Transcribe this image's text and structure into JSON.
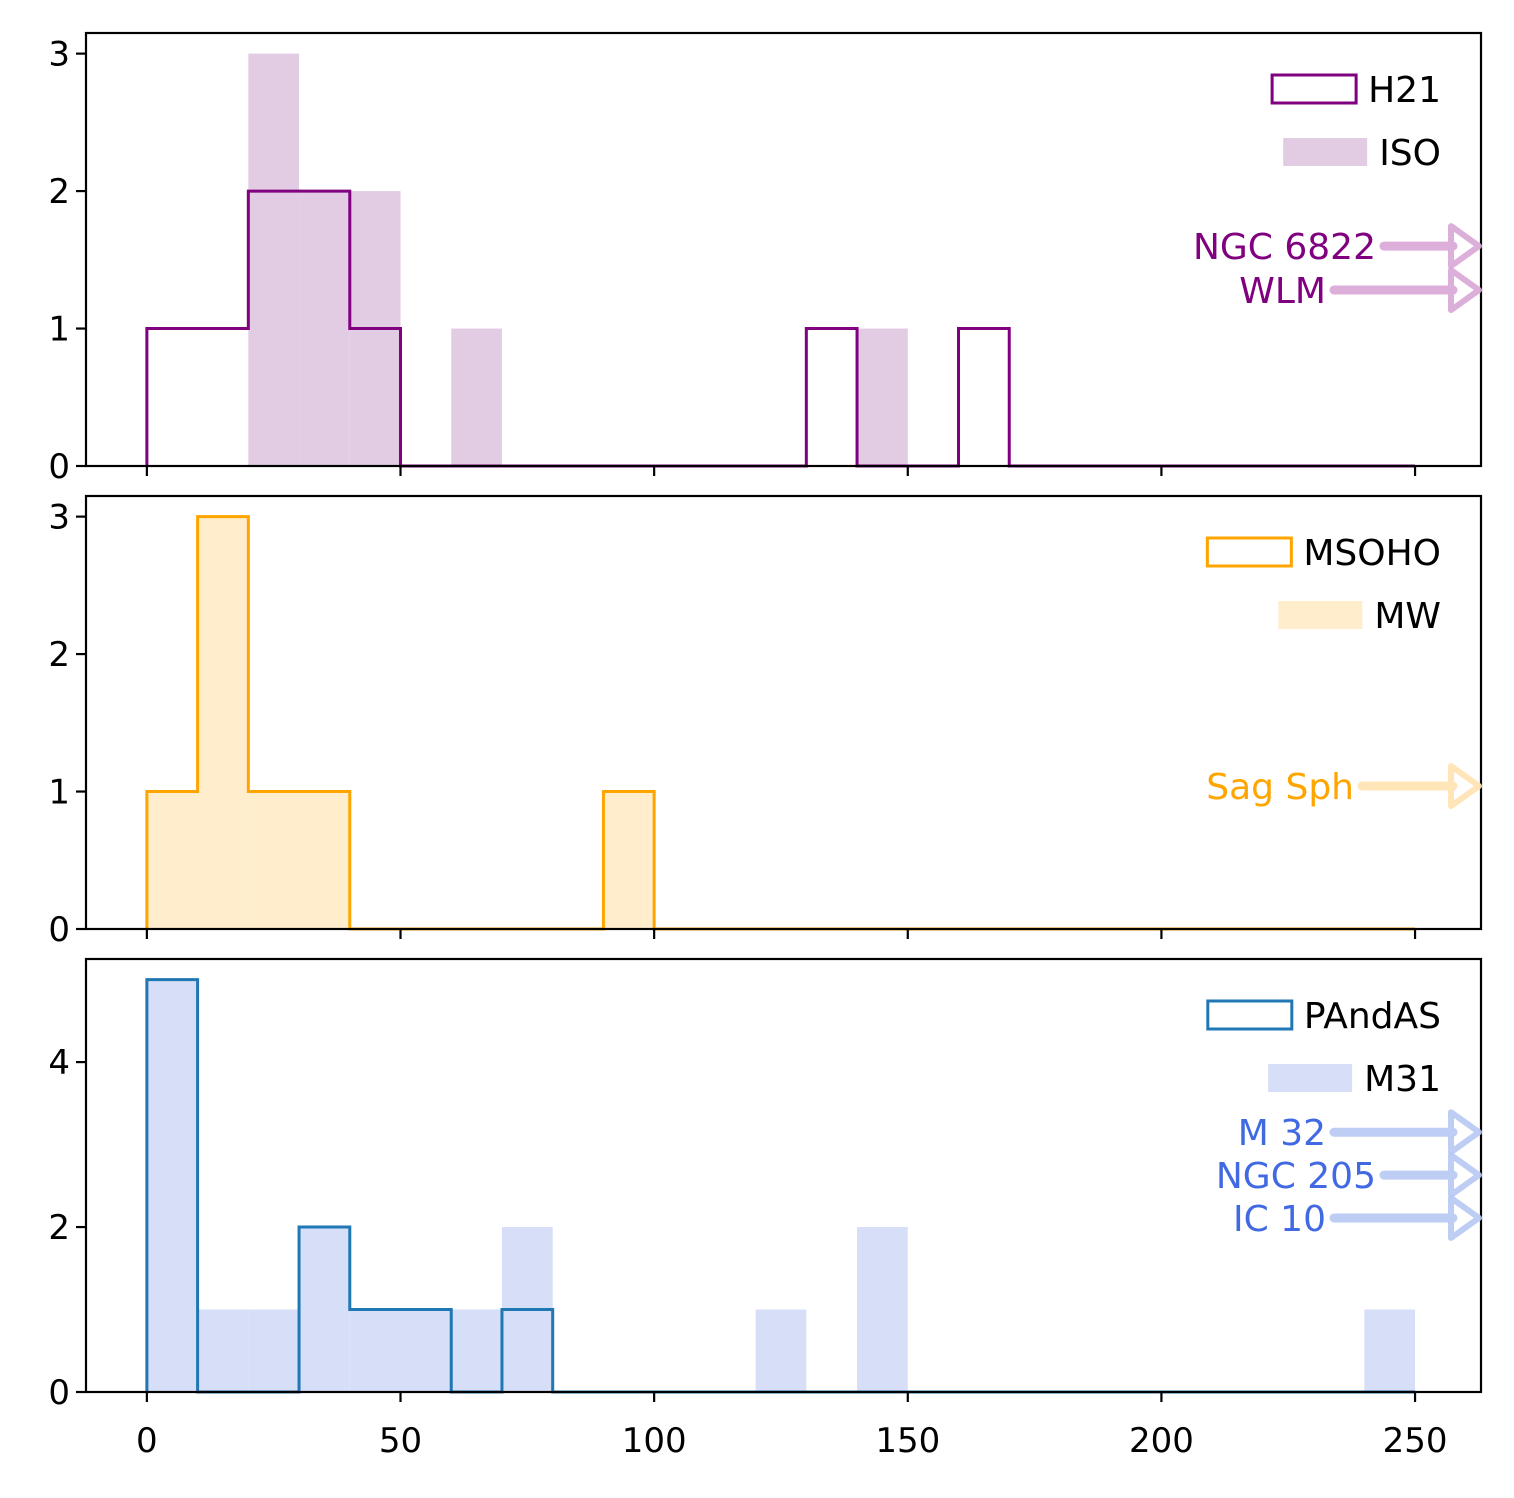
{
  "chart_data": [
    {
      "type": "histogram",
      "panel": "top",
      "bin_width": 10,
      "xlim": [
        -12,
        263
      ],
      "ylim": [
        0,
        3.15
      ],
      "yticks": [
        0,
        1,
        2,
        3
      ],
      "xticks": [
        0,
        50,
        100,
        150,
        200,
        250
      ],
      "show_xtick_labels": false,
      "legend_position": "top-right",
      "series": [
        {
          "name": "ISO",
          "style": "filled",
          "color": "#e2cce3",
          "bins": [
            [
              20,
              30,
              3
            ],
            [
              30,
              40,
              2
            ],
            [
              40,
              50,
              2
            ],
            [
              60,
              70,
              1
            ],
            [
              140,
              150,
              1
            ]
          ]
        },
        {
          "name": "H21",
          "style": "step",
          "color": "#800080",
          "bins": [
            [
              0,
              10,
              1
            ],
            [
              10,
              20,
              1
            ],
            [
              20,
              30,
              2
            ],
            [
              30,
              40,
              2
            ],
            [
              40,
              50,
              1
            ],
            [
              50,
              60,
              0
            ],
            [
              60,
              70,
              0
            ],
            [
              70,
              80,
              0
            ],
            [
              80,
              90,
              0
            ],
            [
              90,
              100,
              0
            ],
            [
              100,
              110,
              0
            ],
            [
              110,
              120,
              0
            ],
            [
              120,
              130,
              0
            ],
            [
              130,
              140,
              1
            ],
            [
              140,
              150,
              0
            ],
            [
              150,
              160,
              0
            ],
            [
              160,
              170,
              1
            ],
            [
              170,
              180,
              0
            ],
            [
              180,
              190,
              0
            ],
            [
              190,
              200,
              0
            ],
            [
              200,
              210,
              0
            ],
            [
              210,
              220,
              0
            ],
            [
              220,
              230,
              0
            ],
            [
              230,
              240,
              0
            ],
            [
              240,
              250,
              0
            ]
          ]
        }
      ],
      "legend": [
        {
          "label": "H21",
          "style": "step",
          "color": "#800080"
        },
        {
          "label": "ISO",
          "style": "filled",
          "color": "#e2cce3"
        }
      ],
      "annotations": [
        {
          "text": "NGC 6822",
          "y": 1.6,
          "color": "#800080",
          "arrow_color": "#d9a6d7"
        },
        {
          "text": "WLM",
          "y": 1.28,
          "color": "#800080",
          "arrow_color": "#d9a6d7"
        }
      ]
    },
    {
      "type": "histogram",
      "panel": "middle",
      "bin_width": 10,
      "xlim": [
        -12,
        263
      ],
      "ylim": [
        0,
        3.15
      ],
      "yticks": [
        0,
        1,
        2,
        3
      ],
      "xticks": [
        0,
        50,
        100,
        150,
        200,
        250
      ],
      "show_xtick_labels": false,
      "legend_position": "top-right",
      "series": [
        {
          "name": "MW",
          "style": "filled",
          "color": "#ffedcc",
          "bins": [
            [
              0,
              10,
              1
            ],
            [
              10,
              20,
              3
            ],
            [
              20,
              30,
              1
            ],
            [
              30,
              40,
              1
            ],
            [
              90,
              100,
              1
            ]
          ]
        },
        {
          "name": "MSOHO",
          "style": "step",
          "color": "#ffa500",
          "bins": [
            [
              0,
              10,
              1
            ],
            [
              10,
              20,
              3
            ],
            [
              20,
              30,
              1
            ],
            [
              30,
              40,
              1
            ],
            [
              40,
              50,
              0
            ],
            [
              50,
              60,
              0
            ],
            [
              60,
              70,
              0
            ],
            [
              70,
              80,
              0
            ],
            [
              80,
              90,
              0
            ],
            [
              90,
              100,
              1
            ],
            [
              100,
              110,
              0
            ],
            [
              110,
              120,
              0
            ],
            [
              120,
              130,
              0
            ],
            [
              130,
              140,
              0
            ],
            [
              140,
              150,
              0
            ],
            [
              150,
              160,
              0
            ],
            [
              160,
              170,
              0
            ],
            [
              170,
              180,
              0
            ],
            [
              180,
              190,
              0
            ],
            [
              190,
              200,
              0
            ],
            [
              200,
              210,
              0
            ],
            [
              210,
              220,
              0
            ],
            [
              220,
              230,
              0
            ],
            [
              230,
              240,
              0
            ],
            [
              240,
              250,
              0
            ]
          ]
        }
      ],
      "legend": [
        {
          "label": "MSOHO",
          "style": "step",
          "color": "#ffa500"
        },
        {
          "label": "MW",
          "style": "filled",
          "color": "#ffedcc"
        }
      ],
      "annotations": [
        {
          "text": "Sag Sph",
          "y": 1.04,
          "color": "#ffa500",
          "arrow_color": "#ffe3b0"
        }
      ]
    },
    {
      "type": "histogram",
      "panel": "bottom",
      "bin_width": 10,
      "xlim": [
        -12,
        263
      ],
      "ylim": [
        0,
        5.25
      ],
      "yticks": [
        0,
        2,
        4
      ],
      "xticks": [
        0,
        50,
        100,
        150,
        200,
        250
      ],
      "show_xtick_labels": true,
      "legend_position": "top-right",
      "series": [
        {
          "name": "M31",
          "style": "filled",
          "color": "#d6dff7",
          "bins": [
            [
              0,
              10,
              5
            ],
            [
              10,
              20,
              1
            ],
            [
              20,
              30,
              1
            ],
            [
              30,
              40,
              2
            ],
            [
              40,
              50,
              1
            ],
            [
              50,
              60,
              1
            ],
            [
              60,
              70,
              1
            ],
            [
              70,
              80,
              2
            ],
            [
              120,
              130,
              1
            ],
            [
              140,
              150,
              2
            ],
            [
              240,
              250,
              1
            ]
          ]
        },
        {
          "name": "PAndAS",
          "style": "step",
          "color": "#1f77b4",
          "bins": [
            [
              0,
              10,
              5
            ],
            [
              10,
              20,
              0
            ],
            [
              20,
              30,
              0
            ],
            [
              30,
              40,
              2
            ],
            [
              40,
              50,
              1
            ],
            [
              50,
              60,
              1
            ],
            [
              60,
              70,
              0
            ],
            [
              70,
              80,
              1
            ],
            [
              80,
              90,
              0
            ],
            [
              90,
              100,
              0
            ],
            [
              100,
              110,
              0
            ],
            [
              110,
              120,
              0
            ],
            [
              120,
              130,
              0
            ],
            [
              130,
              140,
              0
            ],
            [
              140,
              150,
              0
            ],
            [
              150,
              160,
              0
            ],
            [
              160,
              170,
              0
            ],
            [
              170,
              180,
              0
            ],
            [
              180,
              190,
              0
            ],
            [
              190,
              200,
              0
            ],
            [
              200,
              210,
              0
            ],
            [
              210,
              220,
              0
            ],
            [
              220,
              230,
              0
            ],
            [
              230,
              240,
              0
            ],
            [
              240,
              250,
              0
            ]
          ]
        }
      ],
      "legend": [
        {
          "label": "PAndAS",
          "style": "step",
          "color": "#1f77b4"
        },
        {
          "label": "M31",
          "style": "filled",
          "color": "#d6dff7"
        }
      ],
      "annotations": [
        {
          "text": "M 32",
          "y": 3.15,
          "color": "#4169e1",
          "arrow_color": "#b8c8f2"
        },
        {
          "text": "NGC 205",
          "y": 2.63,
          "color": "#4169e1",
          "arrow_color": "#b8c8f2"
        },
        {
          "text": "IC 10",
          "y": 2.11,
          "color": "#4169e1",
          "arrow_color": "#b8c8f2"
        }
      ]
    }
  ]
}
